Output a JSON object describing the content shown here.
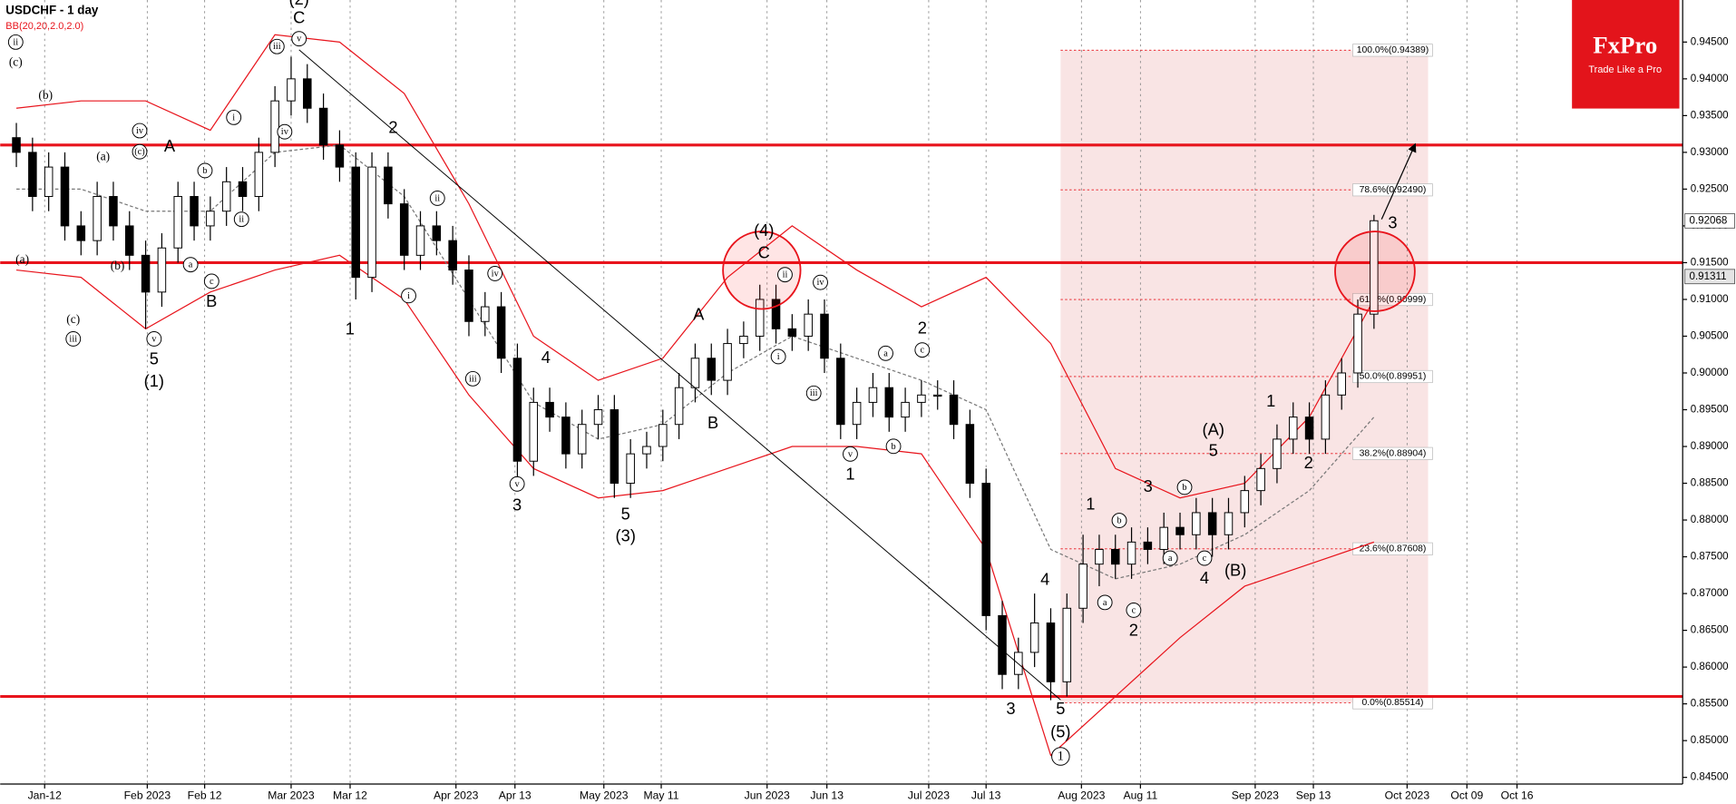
{
  "chart_data": {
    "type": "candlestick",
    "title": "USDCHF - 1 day",
    "indicator": "BB(20,20,2.0,2.0)",
    "logo": {
      "name": "FxPro",
      "slogan": "Trade Like a Pro"
    },
    "grid": true,
    "up_color": "#ffffff",
    "down_color": "#000000",
    "xlim": [
      0,
      208.2
    ],
    "ylim": [
      0.84409,
      0.95072
    ],
    "xticks": [
      {
        "value": 5.5,
        "label": "Jan-12"
      },
      {
        "value": 18.2,
        "label": "Feb 2023"
      },
      {
        "value": 25.3,
        "label": "Feb 12"
      },
      {
        "value": 36,
        "label": "Mar 2023"
      },
      {
        "value": 43.3,
        "label": "Mar 12"
      },
      {
        "value": 56.4,
        "label": "Apr 2023"
      },
      {
        "value": 63.7,
        "label": "Apr 13"
      },
      {
        "value": 74.7,
        "label": "May 2023"
      },
      {
        "value": 81.8,
        "label": "May 11"
      },
      {
        "value": 94.9,
        "label": "Jun 2023"
      },
      {
        "value": 102.3,
        "label": "Jun 13"
      },
      {
        "value": 114.9,
        "label": "Jul 2023"
      },
      {
        "value": 122,
        "label": "Jul 13"
      },
      {
        "value": 133.8,
        "label": "Aug 2023"
      },
      {
        "value": 141.1,
        "label": "Aug 11"
      },
      {
        "value": 155.3,
        "label": "Sep 2023"
      },
      {
        "value": 162.5,
        "label": "Sep 13"
      },
      {
        "value": 174.1,
        "label": "Oct 2023"
      },
      {
        "value": 181.5,
        "label": "Oct 09"
      },
      {
        "value": 187.7,
        "label": "Oct 16"
      }
    ],
    "yticks": [
      {
        "value": 0.845,
        "label": "0.84500"
      },
      {
        "value": 0.85,
        "label": "0.85000"
      },
      {
        "value": 0.855,
        "label": "0.85500"
      },
      {
        "value": 0.86,
        "label": "0.86000"
      },
      {
        "value": 0.865,
        "label": "0.86500"
      },
      {
        "value": 0.87,
        "label": "0.87000"
      },
      {
        "value": 0.875,
        "label": "0.87500"
      },
      {
        "value": 0.88,
        "label": "0.88000"
      },
      {
        "value": 0.885,
        "label": "0.88500"
      },
      {
        "value": 0.89,
        "label": "0.89000"
      },
      {
        "value": 0.895,
        "label": "0.89500"
      },
      {
        "value": 0.9,
        "label": "0.90000"
      },
      {
        "value": 0.905,
        "label": "0.90500"
      },
      {
        "value": 0.91,
        "label": "0.91000"
      },
      {
        "value": 0.915,
        "label": "0.91500"
      },
      {
        "value": 0.92,
        "label": "0.92000"
      },
      {
        "value": 0.925,
        "label": "0.92500"
      },
      {
        "value": 0.93,
        "label": "0.93000"
      },
      {
        "value": 0.935,
        "label": "0.93500"
      },
      {
        "value": 0.94,
        "label": "0.94000"
      },
      {
        "value": 0.945,
        "label": "0.94500"
      }
    ],
    "price_tags": [
      0.92068,
      0.91311
    ],
    "x": [
      2,
      4,
      6,
      8,
      10,
      12,
      14,
      16,
      18,
      20,
      22,
      24,
      26,
      28,
      30,
      32,
      34,
      36,
      38,
      40,
      42,
      44,
      46,
      48,
      50,
      52,
      54,
      56,
      58,
      60,
      62,
      64,
      66,
      68,
      70,
      72,
      74,
      76,
      78,
      80,
      82,
      84,
      86,
      88,
      90,
      92,
      94,
      96,
      98,
      100,
      102,
      104,
      106,
      108,
      110,
      112,
      114,
      116,
      118,
      120,
      122,
      124,
      126,
      128,
      130,
      132,
      134,
      136,
      138,
      140,
      142,
      144,
      146,
      148,
      150,
      152,
      154,
      156,
      158,
      160,
      162,
      164,
      166,
      168,
      170
    ],
    "open": [
      0.932,
      0.93,
      0.924,
      0.928,
      0.92,
      0.918,
      0.924,
      0.92,
      0.916,
      0.911,
      0.917,
      0.924,
      0.92,
      0.922,
      0.926,
      0.924,
      0.93,
      0.937,
      0.94,
      0.936,
      0.931,
      0.928,
      0.913,
      0.928,
      0.923,
      0.916,
      0.92,
      0.918,
      0.914,
      0.907,
      0.909,
      0.902,
      0.888,
      0.896,
      0.894,
      0.889,
      0.893,
      0.895,
      0.885,
      0.889,
      0.89,
      0.893,
      0.898,
      0.902,
      0.899,
      0.904,
      0.905,
      0.91,
      0.906,
      0.905,
      0.908,
      0.902,
      0.893,
      0.896,
      0.898,
      0.894,
      0.896,
      0.897,
      0.897,
      0.893,
      0.885,
      0.867,
      0.859,
      0.862,
      0.866,
      0.858,
      0.868,
      0.874,
      0.876,
      0.874,
      0.877,
      0.876,
      0.879,
      0.878,
      0.881,
      0.878,
      0.881,
      0.884,
      0.887,
      0.891,
      0.894,
      0.891,
      0.897,
      0.9,
      0.908
    ],
    "high": [
      0.934,
      0.932,
      0.93,
      0.93,
      0.922,
      0.926,
      0.926,
      0.922,
      0.918,
      0.919,
      0.926,
      0.926,
      0.924,
      0.928,
      0.928,
      0.932,
      0.939,
      0.943,
      0.942,
      0.938,
      0.933,
      0.93,
      0.93,
      0.93,
      0.925,
      0.922,
      0.922,
      0.92,
      0.916,
      0.911,
      0.911,
      0.904,
      0.898,
      0.898,
      0.896,
      0.895,
      0.897,
      0.897,
      0.891,
      0.892,
      0.895,
      0.9,
      0.904,
      0.904,
      0.906,
      0.907,
      0.912,
      0.912,
      0.908,
      0.91,
      0.91,
      0.904,
      0.898,
      0.9,
      0.9,
      0.898,
      0.899,
      0.899,
      0.899,
      0.895,
      0.887,
      0.869,
      0.864,
      0.87,
      0.868,
      0.87,
      0.878,
      0.878,
      0.878,
      0.879,
      0.879,
      0.881,
      0.881,
      0.883,
      0.883,
      0.883,
      0.886,
      0.889,
      0.893,
      0.896,
      0.896,
      0.899,
      0.902,
      0.91,
      0.9215
    ],
    "low": [
      0.928,
      0.922,
      0.922,
      0.918,
      0.916,
      0.916,
      0.918,
      0.914,
      0.906,
      0.909,
      0.915,
      0.918,
      0.918,
      0.92,
      0.922,
      0.922,
      0.928,
      0.935,
      0.934,
      0.929,
      0.926,
      0.91,
      0.911,
      0.921,
      0.914,
      0.914,
      0.916,
      0.912,
      0.905,
      0.905,
      0.9,
      0.885,
      0.886,
      0.892,
      0.887,
      0.887,
      0.891,
      0.883,
      0.883,
      0.887,
      0.888,
      0.891,
      0.896,
      0.897,
      0.897,
      0.902,
      0.903,
      0.904,
      0.903,
      0.903,
      0.9,
      0.891,
      0.891,
      0.894,
      0.892,
      0.892,
      0.894,
      0.895,
      0.891,
      0.883,
      0.865,
      0.857,
      0.857,
      0.86,
      0.8555,
      0.856,
      0.866,
      0.871,
      0.872,
      0.872,
      0.874,
      0.874,
      0.876,
      0.876,
      0.875,
      0.876,
      0.879,
      0.882,
      0.885,
      0.889,
      0.889,
      0.889,
      0.895,
      0.898,
      0.906
    ],
    "close": [
      0.93,
      0.924,
      0.928,
      0.92,
      0.918,
      0.924,
      0.92,
      0.916,
      0.911,
      0.917,
      0.924,
      0.92,
      0.922,
      0.926,
      0.924,
      0.93,
      0.937,
      0.94,
      0.936,
      0.931,
      0.928,
      0.913,
      0.928,
      0.923,
      0.916,
      0.92,
      0.918,
      0.914,
      0.907,
      0.909,
      0.902,
      0.888,
      0.896,
      0.894,
      0.889,
      0.893,
      0.895,
      0.885,
      0.889,
      0.89,
      0.893,
      0.898,
      0.902,
      0.899,
      0.904,
      0.905,
      0.91,
      0.906,
      0.905,
      0.908,
      0.902,
      0.893,
      0.896,
      0.898,
      0.894,
      0.896,
      0.897,
      0.897,
      0.893,
      0.885,
      0.867,
      0.859,
      0.862,
      0.866,
      0.858,
      0.868,
      0.874,
      0.876,
      0.874,
      0.877,
      0.876,
      0.879,
      0.878,
      0.881,
      0.878,
      0.881,
      0.884,
      0.887,
      0.891,
      0.894,
      0.891,
      0.897,
      0.9,
      0.908,
      0.9207
    ],
    "bollinger": {
      "color": "#e8141c",
      "x": [
        2,
        10,
        18,
        26,
        34,
        42,
        50,
        58,
        66,
        74,
        82,
        90,
        98,
        106,
        114,
        122,
        130,
        138,
        146,
        154,
        162,
        170
      ],
      "upper": [
        0.936,
        0.937,
        0.937,
        0.933,
        0.946,
        0.945,
        0.938,
        0.923,
        0.905,
        0.899,
        0.902,
        0.913,
        0.92,
        0.914,
        0.909,
        0.913,
        0.904,
        0.887,
        0.883,
        0.885,
        0.894,
        0.91
      ],
      "middle": [
        0.925,
        0.925,
        0.922,
        0.922,
        0.93,
        0.931,
        0.924,
        0.91,
        0.896,
        0.891,
        0.893,
        0.9,
        0.905,
        0.902,
        0.899,
        0.895,
        0.876,
        0.872,
        0.874,
        0.878,
        0.884,
        0.894
      ],
      "lower": [
        0.914,
        0.913,
        0.906,
        0.911,
        0.914,
        0.916,
        0.91,
        0.897,
        0.887,
        0.883,
        0.884,
        0.887,
        0.89,
        0.89,
        0.889,
        0.876,
        0.848,
        0.856,
        0.864,
        0.871,
        0.874,
        0.877
      ]
    },
    "horizontal_levels": [
      0.931,
      0.915,
      0.856
    ],
    "fib_levels": [
      {
        "value": 0.94389,
        "label": "100.0%(0.94389)"
      },
      {
        "value": 0.9249,
        "label": "78.6%(0.92490)"
      },
      {
        "value": 0.90999,
        "label": "61.8%(0.90999)"
      },
      {
        "value": 0.89951,
        "label": "50.0%(0.89951)"
      },
      {
        "value": 0.88904,
        "label": "38.2%(0.88904)"
      },
      {
        "value": 0.87608,
        "label": "23.6%(0.87608)"
      },
      {
        "value": 0.85514,
        "label": "0.0%(0.85514)"
      }
    ],
    "wave_labels": [
      "ii",
      "(c)",
      "(b)",
      "(a)",
      "iv",
      "(c)",
      "A",
      "b",
      "i",
      "ii",
      "(a)",
      "(b)",
      "a",
      "c",
      "B",
      "(c)",
      "iii",
      "v",
      "5",
      "(1)",
      "iii",
      "v",
      "C",
      "(2)",
      "iv",
      "2",
      "ii",
      "iv",
      "i",
      "1",
      "iii",
      "4",
      "v",
      "3",
      "5",
      "(3)",
      "A",
      "B",
      "(4)",
      "C",
      "ii",
      "i",
      "iv",
      "iii",
      "v",
      "1",
      "a",
      "b",
      "2",
      "c",
      "3",
      "4",
      "5",
      "(5)",
      "1",
      "1",
      "a",
      "b",
      "c",
      "2",
      "3",
      "a",
      "b",
      "c",
      "4",
      "(A)",
      "5",
      "(B)",
      "1",
      "2",
      "3"
    ]
  }
}
